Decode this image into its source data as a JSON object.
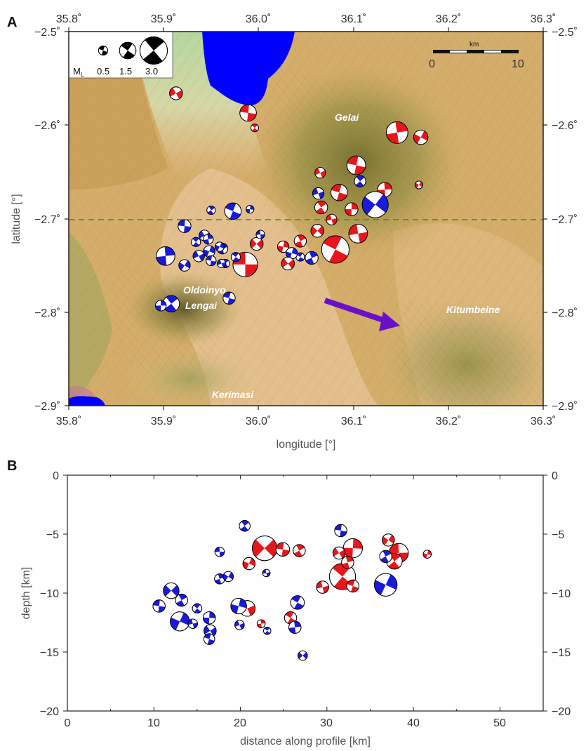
{
  "panel_a": {
    "letter": "A",
    "xlabel": "longitude [°]",
    "ylabel": "latitude [°]",
    "x_ticks": [
      "35.8˚",
      "35.9˚",
      "36.0˚",
      "36.1˚",
      "36.2˚",
      "36.3˚"
    ],
    "y_ticks": [
      "−2.5˚",
      "−2.6˚",
      "−2.7˚",
      "−2.8˚",
      "−2.9˚"
    ],
    "place_names": {
      "gelai": "Gelai",
      "oldoinyo_1": "Oldoinyo",
      "oldoinyo_2": "Lengai",
      "kitumbeine": "Kitumbeine",
      "kerimasi": "Kerimasi"
    },
    "legend": {
      "ml_main": "M",
      "ml_sub": "L",
      "values": [
        "0.5",
        "1.5",
        "3.0"
      ]
    },
    "scalebar": {
      "unit": "km",
      "left": "0",
      "right": "10"
    },
    "colors": {
      "red": "#e8161b",
      "blue": "#1a1adb",
      "lake": "#0000ff",
      "arrow": "#6a0fc8",
      "dashed": "#3b8a3b"
    }
  },
  "panel_b": {
    "letter": "B",
    "xlabel": "distance along profile [km]",
    "ylabel": "depth [km]",
    "x_ticks": [
      "0",
      "10",
      "20",
      "30",
      "40",
      "50"
    ],
    "y_ticks": [
      "0",
      "−5",
      "−10",
      "−15",
      "−20"
    ]
  },
  "chart_data": {
    "type": "scatter",
    "xlabel": "distance along profile [km]",
    "ylabel": "depth [km]",
    "xlim": [
      0,
      55
    ],
    "ylim": [
      -20,
      0
    ],
    "series": [
      {
        "name": "red",
        "values": [
          {
            "x": 22.8,
            "y": -6.2,
            "m": 2.8
          },
          {
            "x": 24.9,
            "y": -6.3,
            "m": 1.2
          },
          {
            "x": 26.8,
            "y": -6.4,
            "m": 1.0
          },
          {
            "x": 21.0,
            "y": -7.5,
            "m": 1.0
          },
          {
            "x": 29.5,
            "y": -9.5,
            "m": 1.0
          },
          {
            "x": 31.8,
            "y": -8.6,
            "m": 3.0
          },
          {
            "x": 33.0,
            "y": -6.2,
            "m": 2.0
          },
          {
            "x": 31.4,
            "y": -6.6,
            "m": 1.0
          },
          {
            "x": 33.0,
            "y": -9.4,
            "m": 1.0
          },
          {
            "x": 32.4,
            "y": -7.4,
            "m": 1.0
          },
          {
            "x": 37.1,
            "y": -5.5,
            "m": 1.0
          },
          {
            "x": 38.3,
            "y": -6.6,
            "m": 2.0
          },
          {
            "x": 37.8,
            "y": -7.3,
            "m": 1.5
          },
          {
            "x": 41.6,
            "y": -6.7,
            "m": 0.4
          },
          {
            "x": 20.8,
            "y": -11.3,
            "m": 1.5
          },
          {
            "x": 25.8,
            "y": -12.1,
            "m": 1.0
          },
          {
            "x": 22.4,
            "y": -12.6,
            "m": 0.4
          }
        ]
      },
      {
        "name": "blue",
        "values": [
          {
            "x": 12.0,
            "y": -9.8,
            "m": 1.5
          },
          {
            "x": 10.6,
            "y": -11.1,
            "m": 1.0
          },
          {
            "x": 13.2,
            "y": -10.6,
            "m": 1.0
          },
          {
            "x": 13.0,
            "y": -12.4,
            "m": 2.0
          },
          {
            "x": 14.5,
            "y": -12.6,
            "m": 0.6
          },
          {
            "x": 15.0,
            "y": -11.3,
            "m": 0.6
          },
          {
            "x": 16.4,
            "y": -12.1,
            "m": 1.0
          },
          {
            "x": 16.5,
            "y": -13.2,
            "m": 1.0
          },
          {
            "x": 16.4,
            "y": -13.9,
            "m": 0.8
          },
          {
            "x": 17.6,
            "y": -8.8,
            "m": 0.7
          },
          {
            "x": 18.6,
            "y": -8.6,
            "m": 0.7
          },
          {
            "x": 17.6,
            "y": -6.5,
            "m": 0.6
          },
          {
            "x": 20.5,
            "y": -4.3,
            "m": 0.8
          },
          {
            "x": 19.8,
            "y": -11.1,
            "m": 1.5
          },
          {
            "x": 19.9,
            "y": -12.7,
            "m": 0.6
          },
          {
            "x": 26.6,
            "y": -10.8,
            "m": 1.2
          },
          {
            "x": 26.3,
            "y": -12.9,
            "m": 1.0
          },
          {
            "x": 27.2,
            "y": -15.3,
            "m": 0.6
          },
          {
            "x": 31.6,
            "y": -4.7,
            "m": 1.0
          },
          {
            "x": 36.8,
            "y": -6.9,
            "m": 1.0
          },
          {
            "x": 36.8,
            "y": -9.3,
            "m": 2.5
          },
          {
            "x": 23.0,
            "y": -8.3,
            "m": 0.3
          },
          {
            "x": 23.1,
            "y": -13.2,
            "m": 0.3
          }
        ]
      }
    ]
  },
  "map_events": [
    {
      "lon": 35.913,
      "lat": -2.566,
      "m": 1.0,
      "c": "red"
    },
    {
      "lon": 35.989,
      "lat": -2.587,
      "m": 1.5,
      "c": "red"
    },
    {
      "lon": 35.996,
      "lat": -2.603,
      "m": 0.3,
      "c": "red"
    },
    {
      "lon": 36.146,
      "lat": -2.608,
      "m": 2.2,
      "c": "red"
    },
    {
      "lon": 36.171,
      "lat": -2.613,
      "m": 1.2,
      "c": "red"
    },
    {
      "lon": 36.065,
      "lat": -2.651,
      "m": 0.7,
      "c": "red"
    },
    {
      "lon": 36.103,
      "lat": -2.643,
      "m": 1.8,
      "c": "red"
    },
    {
      "lon": 36.107,
      "lat": -2.66,
      "m": 0.8,
      "c": "blue"
    },
    {
      "lon": 36.133,
      "lat": -2.669,
      "m": 1.2,
      "c": "red"
    },
    {
      "lon": 36.169,
      "lat": -2.664,
      "m": 0.3,
      "c": "red"
    },
    {
      "lon": 36.063,
      "lat": -2.673,
      "m": 0.8,
      "c": "blue"
    },
    {
      "lon": 36.085,
      "lat": -2.672,
      "m": 1.5,
      "c": "red"
    },
    {
      "lon": 36.066,
      "lat": -2.688,
      "m": 1.0,
      "c": "red"
    },
    {
      "lon": 36.098,
      "lat": -2.69,
      "m": 1.0,
      "c": "red"
    },
    {
      "lon": 36.123,
      "lat": -2.685,
      "m": 2.8,
      "c": "blue"
    },
    {
      "lon": 36.077,
      "lat": -2.701,
      "m": 0.7,
      "c": "red"
    },
    {
      "lon": 35.973,
      "lat": -2.692,
      "m": 1.5,
      "c": "blue"
    },
    {
      "lon": 35.95,
      "lat": -2.691,
      "m": 0.4,
      "c": "blue"
    },
    {
      "lon": 35.991,
      "lat": -2.69,
      "m": 0.3,
      "c": "blue"
    },
    {
      "lon": 36.062,
      "lat": -2.713,
      "m": 1.0,
      "c": "red"
    },
    {
      "lon": 36.105,
      "lat": -2.716,
      "m": 1.8,
      "c": "red"
    },
    {
      "lon": 36.081,
      "lat": -2.733,
      "m": 3.0,
      "c": "red"
    },
    {
      "lon": 36.044,
      "lat": -2.724,
      "m": 0.9,
      "c": "red"
    },
    {
      "lon": 36.026,
      "lat": -2.73,
      "m": 0.8,
      "c": "red"
    },
    {
      "lon": 35.998,
      "lat": -2.727,
      "m": 1.0,
      "c": "red"
    },
    {
      "lon": 36.002,
      "lat": -2.717,
      "m": 0.4,
      "c": "blue"
    },
    {
      "lon": 36.044,
      "lat": -2.741,
      "m": 0.4,
      "c": "blue"
    },
    {
      "lon": 36.056,
      "lat": -2.742,
      "m": 1.0,
      "c": "blue"
    },
    {
      "lon": 36.035,
      "lat": -2.737,
      "m": 0.8,
      "c": "blue"
    },
    {
      "lon": 36.031,
      "lat": -2.748,
      "m": 1.0,
      "c": "red"
    },
    {
      "lon": 35.986,
      "lat": -2.749,
      "m": 2.6,
      "c": "red"
    },
    {
      "lon": 35.976,
      "lat": -2.741,
      "m": 0.5,
      "c": "blue"
    },
    {
      "lon": 35.962,
      "lat": -2.732,
      "m": 0.7,
      "c": "blue"
    },
    {
      "lon": 35.948,
      "lat": -2.735,
      "m": 0.8,
      "c": "blue"
    },
    {
      "lon": 35.943,
      "lat": -2.718,
      "m": 0.7,
      "c": "blue"
    },
    {
      "lon": 35.922,
      "lat": -2.708,
      "m": 1.0,
      "c": "blue"
    },
    {
      "lon": 35.934,
      "lat": -2.725,
      "m": 0.5,
      "c": "blue"
    },
    {
      "lon": 35.947,
      "lat": -2.722,
      "m": 0.6,
      "c": "blue"
    },
    {
      "lon": 35.959,
      "lat": -2.73,
      "m": 0.5,
      "c": "blue"
    },
    {
      "lon": 35.937,
      "lat": -2.74,
      "m": 0.8,
      "c": "blue"
    },
    {
      "lon": 35.95,
      "lat": -2.745,
      "m": 0.6,
      "c": "blue"
    },
    {
      "lon": 35.965,
      "lat": -2.748,
      "m": 0.4,
      "c": "blue"
    },
    {
      "lon": 35.902,
      "lat": -2.74,
      "m": 1.8,
      "c": "blue"
    },
    {
      "lon": 35.922,
      "lat": -2.75,
      "m": 0.8,
      "c": "blue"
    },
    {
      "lon": 35.961,
      "lat": -2.748,
      "m": 0.4,
      "c": "blue"
    },
    {
      "lon": 35.969,
      "lat": -2.785,
      "m": 0.9,
      "c": "blue"
    },
    {
      "lon": 35.908,
      "lat": -2.791,
      "m": 1.5,
      "c": "blue"
    },
    {
      "lon": 35.897,
      "lat": -2.793,
      "m": 0.7,
      "c": "blue"
    }
  ]
}
